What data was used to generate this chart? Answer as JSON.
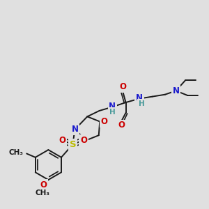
{
  "bg_color": "#e0e0e0",
  "bond_color": "#1a1a1a",
  "bond_width": 1.4,
  "atom_colors": {
    "C": "#1a1a1a",
    "H": "#4a9a9a",
    "N": "#1a1acc",
    "O": "#cc0000",
    "S": "#bbbb00"
  }
}
